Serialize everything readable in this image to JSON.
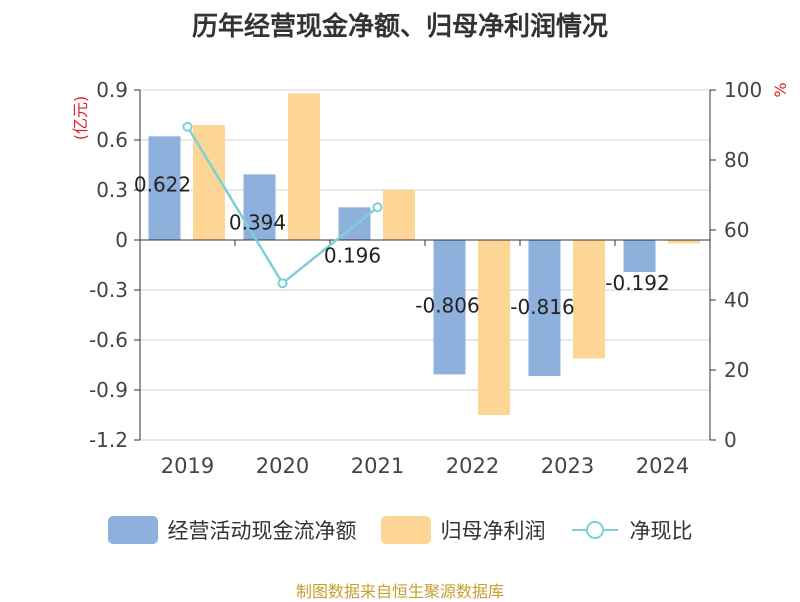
{
  "title": "历年经营现金净额、归母净利润情况",
  "source": "制图数据来自恒生聚源数据库",
  "colors": {
    "cash_flow": "#8eb0dc",
    "net_profit": "#fdd695",
    "ratio_line": "#7fcfd6",
    "axis_unit": "#e02020"
  },
  "legend": {
    "cash_flow": "经营活动现金流净额",
    "net_profit": "归母净利润",
    "ratio": "净现比"
  },
  "chart_data": {
    "type": "bar",
    "categories": [
      "2019",
      "2020",
      "2021",
      "2022",
      "2023",
      "2024"
    ],
    "left_axis": {
      "unit": "(亿元)",
      "ylim": [
        -1.2,
        0.9
      ],
      "ticks": [
        "0.9",
        "0.6",
        "0.3",
        "0",
        "-0.3",
        "-0.6",
        "-0.9",
        "-1.2"
      ],
      "tick_values": [
        0.9,
        0.6,
        0.3,
        0,
        -0.3,
        -0.6,
        -0.9,
        -1.2
      ]
    },
    "right_axis": {
      "unit": "%",
      "ylim": [
        0,
        100
      ],
      "ticks": [
        "100",
        "80",
        "60",
        "40",
        "20",
        "0"
      ],
      "tick_values": [
        100,
        80,
        60,
        40,
        20,
        0
      ]
    },
    "series": [
      {
        "name": "经营活动现金流净额",
        "kind": "bar",
        "axis": "left",
        "values": [
          0.622,
          0.394,
          0.196,
          -0.806,
          -0.816,
          -0.192
        ],
        "labels": [
          "0.622",
          "0.394",
          "0.196",
          "-0.806",
          "-0.816",
          "-0.192"
        ]
      },
      {
        "name": "归母净利润",
        "kind": "bar",
        "axis": "left",
        "values": [
          0.69,
          0.88,
          0.3,
          -1.05,
          -0.71,
          -0.02
        ]
      },
      {
        "name": "净现比",
        "kind": "line",
        "axis": "right",
        "values": [
          89.5,
          44.8,
          66.5,
          null,
          null,
          null
        ]
      }
    ],
    "grid": true,
    "legend_position": "bottom"
  }
}
